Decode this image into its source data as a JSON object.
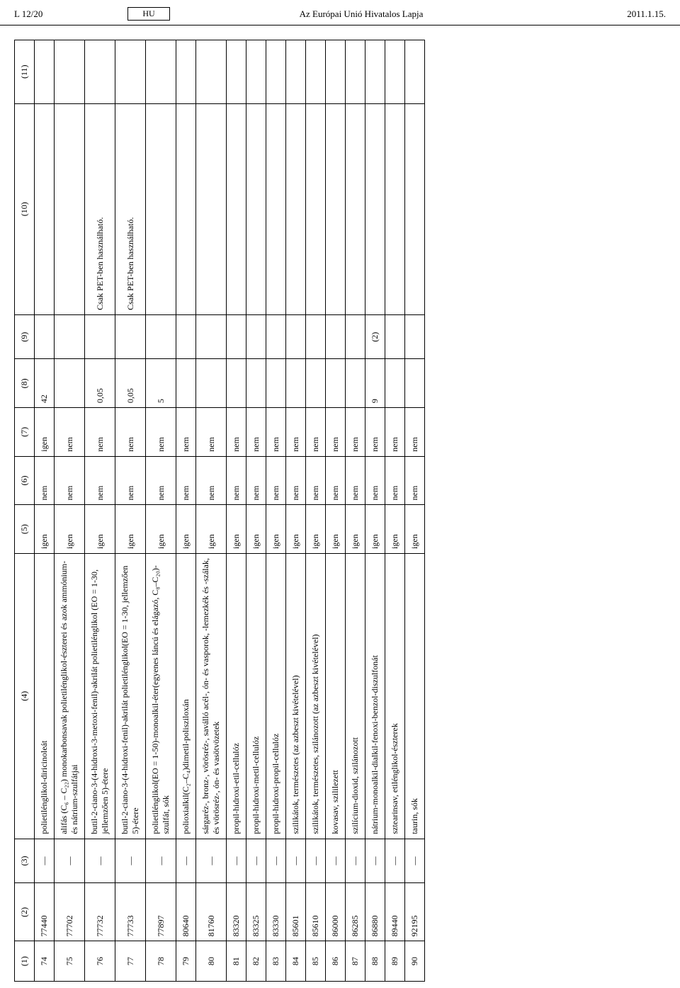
{
  "header": {
    "left": "L 12/20",
    "lang": "HU",
    "center": "Az Európai Unió Hivatalos Lapja",
    "right": "2011.1.15."
  },
  "table": {
    "columns": [
      "(1)",
      "(2)",
      "(3)",
      "(4)",
      "(5)",
      "(6)",
      "(7)",
      "(8)",
      "(9)",
      "(10)",
      "(11)"
    ],
    "rows": [
      {
        "c1": "74",
        "c2": "77440",
        "c3": "—",
        "c4": "polietilénglikol-diricinoleát",
        "c5": "igen",
        "c6": "nem",
        "c7": "igen",
        "c8": "42",
        "c9": "",
        "c10": "",
        "c11": ""
      },
      {
        "c1": "75",
        "c2": "77702",
        "c3": "—",
        "c4": "alifás (C₆ – C₂₂) monokarbonsavak polietilénglikol-észterei és azok ammónium- és nátrium-szulfátjai",
        "c5": "igen",
        "c6": "nem",
        "c7": "nem",
        "c8": "",
        "c9": "",
        "c10": "",
        "c11": ""
      },
      {
        "c1": "76",
        "c2": "77732",
        "c3": "—",
        "c4": "butil-2-ciano-3-(4-hidroxi-3-metoxi-fenil)-akrilát polietilénglikol (EO = 1-30, jellemzően 5)-étere",
        "c5": "igen",
        "c6": "nem",
        "c7": "nem",
        "c8": "0,05",
        "c9": "",
        "c10": "Csak PET-ben használható.",
        "c11": ""
      },
      {
        "c1": "77",
        "c2": "77733",
        "c3": "—",
        "c4": "butil-2-ciano-3-(4-hidroxi-fenil)-akrilát polietilénglikol(EO = 1-30, jellemzően 5)-étere",
        "c5": "igen",
        "c6": "nem",
        "c7": "nem",
        "c8": "0,05",
        "c9": "",
        "c10": "Csak PET-ben használható.",
        "c11": ""
      },
      {
        "c1": "78",
        "c2": "77897",
        "c3": "—",
        "c4": "polietilénglikol(EO = 1-50)-monoalkil-éter(egyenes láncú és elágazó, C₈–C₂₀)-szulfát, sók",
        "c5": "igen",
        "c6": "nem",
        "c7": "nem",
        "c8": "5",
        "c9": "",
        "c10": "",
        "c11": ""
      },
      {
        "c1": "79",
        "c2": "80640",
        "c3": "—",
        "c4": "polioxialkil(C₂–C₄)dimetil-polisziloxán",
        "c5": "igen",
        "c6": "nem",
        "c7": "nem",
        "c8": "",
        "c9": "",
        "c10": "",
        "c11": ""
      },
      {
        "c1": "80",
        "c2": "81760",
        "c3": "—",
        "c4": "sárgaréz-, bronz-, vörösréz-, saválló acél-, ón- és vasporok, -lemezkék és -szálak, és vörösréz-, ón- és vasötvözetek",
        "c5": "igen",
        "c6": "nem",
        "c7": "nem",
        "c8": "",
        "c9": "",
        "c10": "",
        "c11": ""
      },
      {
        "c1": "81",
        "c2": "83320",
        "c3": "—",
        "c4": "propil-hidroxi-etil-cellulóz",
        "c5": "igen",
        "c6": "nem",
        "c7": "nem",
        "c8": "",
        "c9": "",
        "c10": "",
        "c11": ""
      },
      {
        "c1": "82",
        "c2": "83325",
        "c3": "—",
        "c4": "propil-hidroxi-metil-cellulóz",
        "c5": "igen",
        "c6": "nem",
        "c7": "nem",
        "c8": "",
        "c9": "",
        "c10": "",
        "c11": ""
      },
      {
        "c1": "83",
        "c2": "83330",
        "c3": "—",
        "c4": "propil-hidroxi-propil-cellulóz",
        "c5": "igen",
        "c6": "nem",
        "c7": "nem",
        "c8": "",
        "c9": "",
        "c10": "",
        "c11": ""
      },
      {
        "c1": "84",
        "c2": "85601",
        "c3": "—",
        "c4": "szilikátok, természetes (az azbeszt kivételével)",
        "c5": "igen",
        "c6": "nem",
        "c7": "nem",
        "c8": "",
        "c9": "",
        "c10": "",
        "c11": ""
      },
      {
        "c1": "85",
        "c2": "85610",
        "c3": "—",
        "c4": "szilikátok, természetes, szilánozott (az azbeszt kivételével)",
        "c5": "igen",
        "c6": "nem",
        "c7": "nem",
        "c8": "",
        "c9": "",
        "c10": "",
        "c11": ""
      },
      {
        "c1": "86",
        "c2": "86000",
        "c3": "—",
        "c4": "kovasav, szililezett",
        "c5": "igen",
        "c6": "nem",
        "c7": "nem",
        "c8": "",
        "c9": "",
        "c10": "",
        "c11": ""
      },
      {
        "c1": "87",
        "c2": "86285",
        "c3": "—",
        "c4": "szilícium-dioxid, szilánozott",
        "c5": "igen",
        "c6": "nem",
        "c7": "nem",
        "c8": "",
        "c9": "",
        "c10": "",
        "c11": ""
      },
      {
        "c1": "88",
        "c2": "86880",
        "c3": "—",
        "c4": "nátrium-monoalkil-dialkil-fenoxi-benzol-diszulfonát",
        "c5": "igen",
        "c6": "nem",
        "c7": "nem",
        "c8": "9",
        "c9": "(2)",
        "c10": "",
        "c11": ""
      },
      {
        "c1": "89",
        "c2": "89440",
        "c3": "—",
        "c4": "sztearinsav, etilénglikol-észterek",
        "c5": "igen",
        "c6": "nem",
        "c7": "nem",
        "c8": "",
        "c9": "",
        "c10": "",
        "c11": ""
      },
      {
        "c1": "90",
        "c2": "92195",
        "c3": "—",
        "c4": "taurin, sók",
        "c5": "igen",
        "c6": "nem",
        "c7": "nem",
        "c8": "",
        "c9": "",
        "c10": "",
        "c11": ""
      }
    ]
  }
}
